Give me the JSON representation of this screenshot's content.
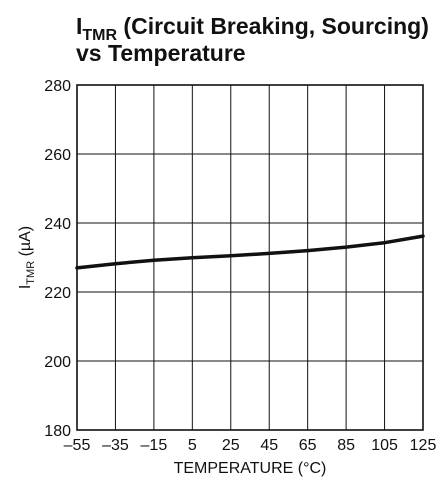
{
  "chart_data": {
    "type": "line",
    "title": {
      "symbol": "I",
      "subscript": "TMR",
      "line1_rest": " (Circuit Breaking, Sourcing)",
      "line2": "vs Temperature"
    },
    "xlabel": "TEMPERATURE (°C)",
    "ylabel": {
      "symbol": "I",
      "subscript": "TMR",
      "rest": " (µA)"
    },
    "xlim": [
      -55,
      125
    ],
    "ylim": [
      180,
      280
    ],
    "xticks": [
      -55,
      -35,
      -15,
      5,
      25,
      45,
      65,
      85,
      105,
      125
    ],
    "xtick_labels": [
      "–55",
      "–35",
      "–15",
      "5",
      "25",
      "45",
      "65",
      "85",
      "105",
      "125"
    ],
    "yticks": [
      180,
      200,
      220,
      240,
      260,
      280
    ],
    "ytick_labels": [
      "180",
      "200",
      "220",
      "240",
      "260",
      "280"
    ],
    "grid": true,
    "series": [
      {
        "x": [
          -55,
          -35,
          -15,
          5,
          25,
          45,
          65,
          85,
          105,
          125
        ],
        "y": [
          227,
          228.2,
          229.2,
          229.9,
          230.5,
          231.2,
          232,
          233,
          234.3,
          236.2
        ]
      }
    ]
  }
}
